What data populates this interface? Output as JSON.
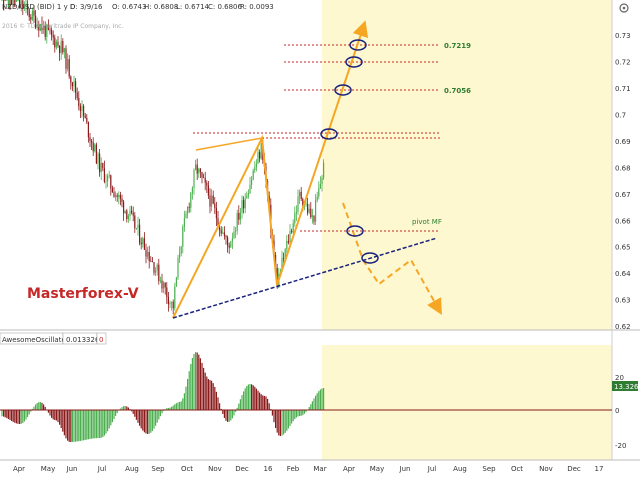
{
  "header": {
    "symbol": "NZD/USD (BID) 1 y D",
    "date": "D: 3/9/16",
    "open": "O: 0.6743",
    "high": "H: 0.6808",
    "low": "L: 0.6714",
    "close": "C: 0.6806",
    "range": "R: 0.0093"
  },
  "copyright": "2016 © TD Ameritrade IP Company, Inc.",
  "watermark": "Masterforex-V",
  "oscillator": {
    "name": "AwesomeOscillator",
    "value": "0.013326",
    "extra": "0",
    "badge": "13.326",
    "ticks": [
      "20",
      "0",
      "-20"
    ]
  },
  "annotations": {
    "level_high": "0.7219",
    "level_mid": "0.7056",
    "pivot": "pivot MF"
  },
  "colors": {
    "up": "#4caf50",
    "down": "#8b1a1a",
    "trend_orange": "#f5a623",
    "trend_blue": "#1a237e",
    "level_line": "#c62828",
    "panel_bg": "#fdf8d0",
    "label_green": "#2e7d32",
    "watermark": "#c62828",
    "badge": "#2e7d32"
  },
  "chart_data": [
    {
      "type": "candlestick",
      "title": "NZD/USD (BID) 1 y D",
      "x_ticks": [
        "Apr",
        "May",
        "Jun",
        "Jul",
        "Aug",
        "Sep",
        "Oct",
        "Nov",
        "Dec",
        "16",
        "Feb",
        "Mar",
        "Apr",
        "May",
        "Jun",
        "Jul",
        "Aug",
        "Sep",
        "Oct",
        "Nov",
        "Dec",
        "17"
      ],
      "y_ticks": [
        "0.73",
        "0.72",
        "0.71",
        "0.7",
        "0.69",
        "0.68",
        "0.67",
        "0.66",
        "0.65",
        "0.64",
        "0.63",
        "0.62"
      ],
      "ylim": [
        0.62,
        0.735
      ],
      "price_path": [
        {
          "x": "Apr 2015",
          "y": 0.75
        },
        {
          "x": "Jun 2015",
          "y": 0.725
        },
        {
          "x": "Jul 2015",
          "y": 0.68
        },
        {
          "x": "Aug 2015",
          "y": 0.66
        },
        {
          "x": "Sep 2015",
          "y": 0.64
        },
        {
          "x": "Oct 2015",
          "y": 0.665
        },
        {
          "x": "Oct 2015",
          "y": 0.68
        },
        {
          "x": "Nov 2015",
          "y": 0.65
        },
        {
          "x": "Dec 2015",
          "y": 0.672
        },
        {
          "x": "16",
          "y": 0.658
        },
        {
          "x": "Feb 2016",
          "y": 0.672
        },
        {
          "x": "Mar 2016",
          "y": 0.681
        }
      ],
      "levels": [
        0.7219,
        0.7056,
        0.6895,
        0.6875,
        0.655
      ],
      "grid": false
    },
    {
      "type": "bar",
      "title": "AwesomeOscillator",
      "ylim": [
        -25,
        25
      ],
      "y_ticks": [
        "20",
        "0",
        "-20"
      ],
      "last_value": 13.326
    }
  ]
}
